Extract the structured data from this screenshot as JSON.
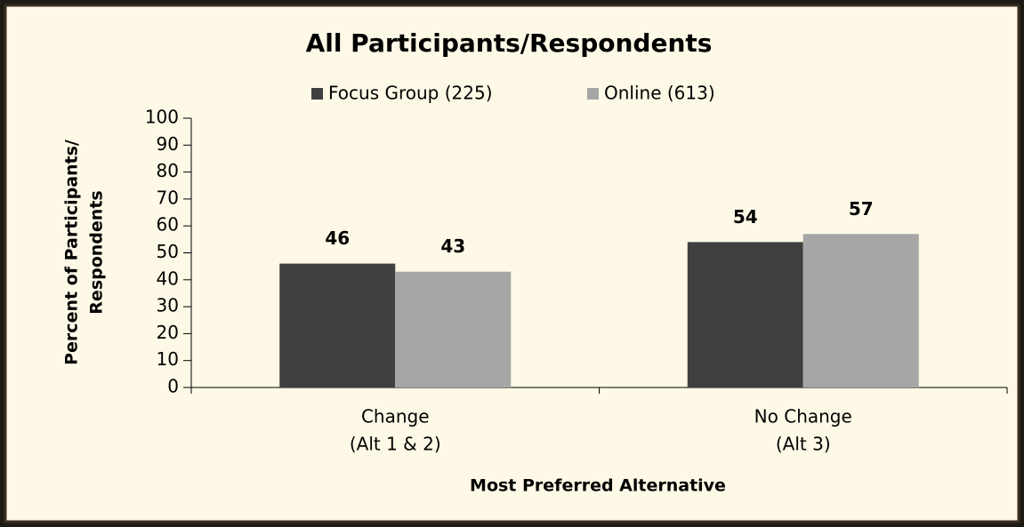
{
  "chart_data": {
    "type": "bar",
    "title": "All Participants/Respondents",
    "categories": [
      [
        "Change",
        "(Alt 1 & 2)"
      ],
      [
        "No Change",
        "(Alt 3)"
      ]
    ],
    "series": [
      {
        "name": "Focus Group (225)",
        "color": "#404040",
        "values": [
          46,
          54
        ]
      },
      {
        "name": "Online (613)",
        "color": "#a6a6a6",
        "values": [
          43,
          57
        ]
      }
    ],
    "ylabel": [
      "Percent of Participants/",
      "Respondents"
    ],
    "xlabel": "Most Preferred Alternative",
    "ylim": [
      0,
      100
    ],
    "yticks": [
      0,
      10,
      20,
      30,
      40,
      50,
      60,
      70,
      80,
      90,
      100
    ],
    "legend": "top",
    "grid": false
  }
}
